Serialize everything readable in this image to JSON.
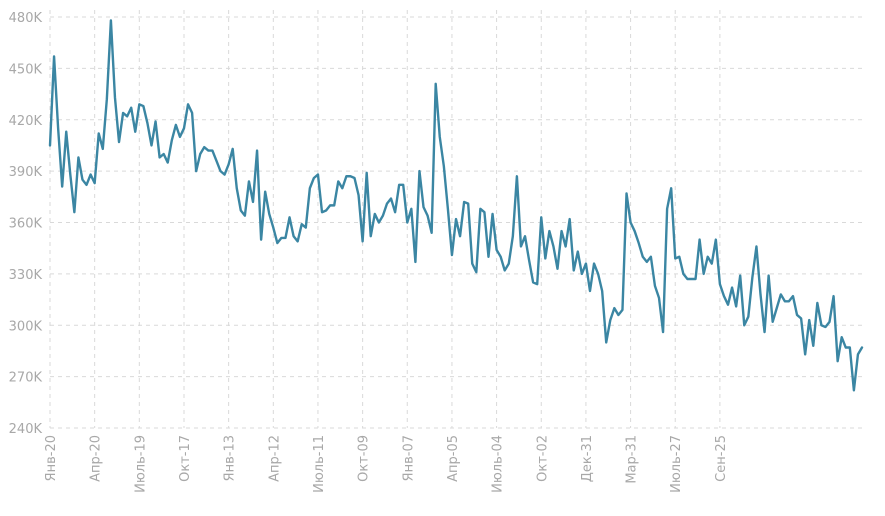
{
  "chart_data": {
    "type": "line",
    "title": "",
    "xlabel": "",
    "ylabel": "",
    "ylim": [
      240000,
      480000
    ],
    "grid": true,
    "y_ticks": [
      {
        "value": 240000,
        "label": "240K"
      },
      {
        "value": 270000,
        "label": "270K"
      },
      {
        "value": 300000,
        "label": "300K"
      },
      {
        "value": 330000,
        "label": "330K"
      },
      {
        "value": 360000,
        "label": "360K"
      },
      {
        "value": 390000,
        "label": "390K"
      },
      {
        "value": 420000,
        "label": "420K"
      },
      {
        "value": 450000,
        "label": "450K"
      },
      {
        "value": 480000,
        "label": "480K"
      }
    ],
    "x_ticks": [
      {
        "index": 0,
        "label": "Янв-20"
      },
      {
        "index": 11,
        "label": "Апр-20"
      },
      {
        "index": 22,
        "label": "Июль-19"
      },
      {
        "index": 33,
        "label": "Окт-17"
      },
      {
        "index": 44,
        "label": "Янв-13"
      },
      {
        "index": 55,
        "label": "Апр-12"
      },
      {
        "index": 66,
        "label": "Июль-11"
      },
      {
        "index": 77,
        "label": "Окт-09"
      },
      {
        "index": 88,
        "label": "Янв-07"
      },
      {
        "index": 99,
        "label": "Апр-05"
      },
      {
        "index": 110,
        "label": "Июль-04"
      },
      {
        "index": 121,
        "label": "Окт-02"
      },
      {
        "index": 132,
        "label": "Дек-31"
      },
      {
        "index": 143,
        "label": "Мар-31"
      },
      {
        "index": 154,
        "label": "Июль-27"
      },
      {
        "index": 165,
        "label": "Сен-25"
      }
    ],
    "series": [
      {
        "name": "value",
        "color": "#3b86a3",
        "values": [
          405000,
          457000,
          415000,
          381000,
          413000,
          388000,
          366000,
          398000,
          385000,
          382000,
          388000,
          383000,
          412000,
          403000,
          432000,
          478000,
          433000,
          407000,
          424000,
          422000,
          427000,
          413000,
          429000,
          428000,
          418000,
          405000,
          419000,
          398000,
          400000,
          395000,
          408000,
          417000,
          410000,
          415000,
          429000,
          424000,
          390000,
          400000,
          404000,
          402000,
          402000,
          396000,
          390000,
          388000,
          394000,
          403000,
          380000,
          367000,
          364000,
          384000,
          372000,
          402000,
          350000,
          378000,
          365000,
          357000,
          348000,
          351000,
          351000,
          363000,
          352000,
          349000,
          359000,
          357000,
          380000,
          386000,
          388000,
          366000,
          367000,
          370000,
          370000,
          384000,
          380000,
          387000,
          387000,
          386000,
          376000,
          349000,
          389000,
          352000,
          365000,
          360000,
          364000,
          371000,
          374000,
          366000,
          382000,
          382000,
          360000,
          368000,
          337000,
          390000,
          369000,
          364000,
          354000,
          441000,
          410000,
          393000,
          368000,
          341000,
          362000,
          352000,
          372000,
          371000,
          336000,
          331000,
          368000,
          366000,
          340000,
          365000,
          344000,
          340000,
          332000,
          336000,
          352000,
          387000,
          346000,
          352000,
          338000,
          325000,
          324000,
          363000,
          339000,
          355000,
          346000,
          333000,
          355000,
          346000,
          362000,
          332000,
          343000,
          330000,
          336000,
          320000,
          336000,
          330000,
          320000,
          290000,
          303000,
          310000,
          306000,
          309000,
          377000,
          360000,
          355000,
          348000,
          340000,
          337000,
          340000,
          323000,
          316000,
          296000,
          368000,
          380000,
          339000,
          340000,
          330000,
          327000,
          327000,
          327000,
          350000,
          330000,
          340000,
          336000,
          350000,
          324000,
          317000,
          312000,
          322000,
          311000,
          329000,
          300000,
          305000,
          328000,
          346000,
          318000,
          296000,
          329000,
          302000,
          310000,
          318000,
          314000,
          314000,
          317000,
          306000,
          304000,
          283000,
          303000,
          288000,
          313000,
          300000,
          299000,
          302000,
          317000,
          279000,
          293000,
          287000,
          287000,
          262000,
          283000,
          287000
        ]
      }
    ]
  }
}
